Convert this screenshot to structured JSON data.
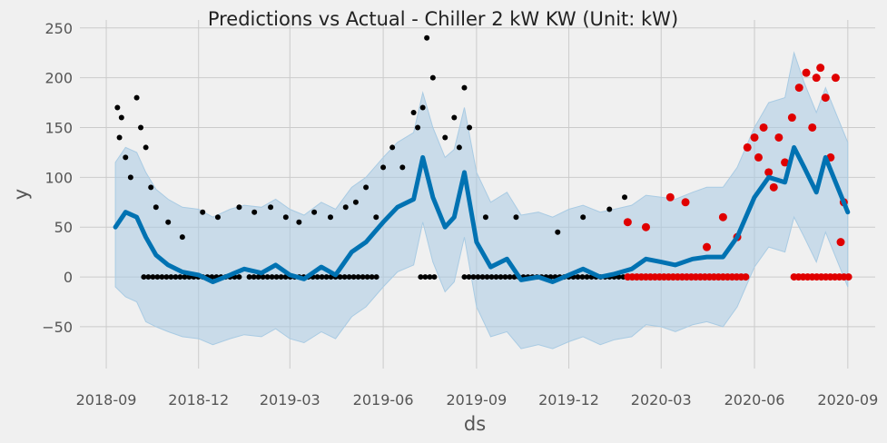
{
  "chart_data": {
    "type": "scatter",
    "title": "Predictions vs Actual - Chiller 2 kW KW (Unit: kW)",
    "xlabel": "ds",
    "ylabel": "y",
    "x_range": [
      "2018-08-06",
      "2020-09-28"
    ],
    "ylim": [
      -92,
      258
    ],
    "x_ticks": [
      "2018-09",
      "2018-12",
      "2019-03",
      "2019-06",
      "2019-09",
      "2019-12",
      "2020-03",
      "2020-06",
      "2020-09"
    ],
    "x_tick_dates": [
      "2018-09-01",
      "2018-12-01",
      "2019-03-01",
      "2019-06-01",
      "2019-09-01",
      "2019-12-01",
      "2020-03-01",
      "2020-06-01",
      "2020-09-01"
    ],
    "y_ticks": [
      -50,
      0,
      50,
      100,
      150,
      200,
      250
    ],
    "grid": true,
    "colors": {
      "background": "#f0f0f0",
      "grid": "#cbcbcb",
      "actual_train": "#000000",
      "actual_test": "#e00000",
      "forecast": "#0072b2",
      "band": "#a9cbe3"
    },
    "series": [
      {
        "kind": "forecast",
        "x": [
          "2018-09-10",
          "2018-09-20",
          "2018-10-01",
          "2018-10-10",
          "2018-10-20",
          "2018-11-01",
          "2018-11-15",
          "2018-12-01",
          "2018-12-15",
          "2019-01-01",
          "2019-01-15",
          "2019-02-01",
          "2019-02-15",
          "2019-03-01",
          "2019-03-15",
          "2019-04-01",
          "2019-04-15",
          "2019-05-01",
          "2019-05-15",
          "2019-06-01",
          "2019-06-15",
          "2019-07-01",
          "2019-07-10",
          "2019-07-20",
          "2019-08-01",
          "2019-08-10",
          "2019-08-20",
          "2019-09-01",
          "2019-09-15",
          "2019-10-01",
          "2019-10-15",
          "2019-11-01",
          "2019-11-15",
          "2019-12-01",
          "2019-12-15",
          "2020-01-01",
          "2020-01-15",
          "2020-02-01",
          "2020-02-15",
          "2020-03-01",
          "2020-03-15",
          "2020-04-01",
          "2020-04-15",
          "2020-05-01",
          "2020-05-15",
          "2020-06-01",
          "2020-06-15",
          "2020-07-01",
          "2020-07-10",
          "2020-07-20",
          "2020-08-01",
          "2020-08-10",
          "2020-08-20",
          "2020-09-01"
        ],
        "y": [
          50,
          65,
          60,
          40,
          22,
          12,
          5,
          2,
          -5,
          2,
          8,
          4,
          12,
          2,
          -2,
          10,
          2,
          25,
          35,
          55,
          70,
          78,
          120,
          80,
          50,
          60,
          105,
          35,
          10,
          18,
          -3,
          0,
          -5,
          2,
          8,
          0,
          3,
          8,
          18,
          15,
          12,
          18,
          20,
          20,
          40,
          80,
          100,
          95,
          130,
          110,
          85,
          120,
          95,
          65
        ]
      },
      {
        "kind": "uncertainty_band",
        "x": [
          "2018-09-10",
          "2018-09-20",
          "2018-10-01",
          "2018-10-10",
          "2018-10-20",
          "2018-11-01",
          "2018-11-15",
          "2018-12-01",
          "2018-12-15",
          "2019-01-01",
          "2019-01-15",
          "2019-02-01",
          "2019-02-15",
          "2019-03-01",
          "2019-03-15",
          "2019-04-01",
          "2019-04-15",
          "2019-05-01",
          "2019-05-15",
          "2019-06-01",
          "2019-06-15",
          "2019-07-01",
          "2019-07-10",
          "2019-07-20",
          "2019-08-01",
          "2019-08-10",
          "2019-08-20",
          "2019-09-01",
          "2019-09-15",
          "2019-10-01",
          "2019-10-15",
          "2019-11-01",
          "2019-11-15",
          "2019-12-01",
          "2019-12-15",
          "2020-01-01",
          "2020-01-15",
          "2020-02-01",
          "2020-02-15",
          "2020-03-01",
          "2020-03-15",
          "2020-04-01",
          "2020-04-15",
          "2020-05-01",
          "2020-05-15",
          "2020-06-01",
          "2020-06-15",
          "2020-07-01",
          "2020-07-10",
          "2020-07-20",
          "2020-08-01",
          "2020-08-10",
          "2020-08-20",
          "2020-09-01"
        ],
        "upper": [
          115,
          130,
          125,
          105,
          88,
          78,
          70,
          68,
          60,
          68,
          72,
          70,
          78,
          68,
          62,
          75,
          68,
          90,
          100,
          120,
          135,
          145,
          185,
          150,
          120,
          128,
          170,
          105,
          75,
          85,
          62,
          65,
          60,
          68,
          72,
          65,
          68,
          72,
          82,
          80,
          78,
          85,
          90,
          90,
          110,
          150,
          175,
          180,
          225,
          195,
          165,
          190,
          165,
          135
        ],
        "lower": [
          -10,
          -20,
          -25,
          -45,
          -50,
          -55,
          -60,
          -62,
          -68,
          -62,
          -58,
          -60,
          -52,
          -62,
          -66,
          -55,
          -62,
          -40,
          -30,
          -10,
          5,
          12,
          55,
          15,
          -15,
          -5,
          40,
          -30,
          -60,
          -55,
          -72,
          -68,
          -72,
          -65,
          -60,
          -68,
          -63,
          -60,
          -48,
          -50,
          -55,
          -48,
          -45,
          -50,
          -30,
          10,
          30,
          25,
          60,
          40,
          15,
          45,
          20,
          -10
        ]
      },
      {
        "kind": "actual_train",
        "name": "",
        "x": [
          "2018-09-12",
          "2018-09-14",
          "2018-09-16",
          "2018-09-20",
          "2018-09-25",
          "2018-10-01",
          "2018-10-05",
          "2018-10-10",
          "2018-10-15",
          "2018-10-20",
          "2018-11-01",
          "2018-11-15",
          "2018-12-05",
          "2018-12-20",
          "2019-01-10",
          "2019-01-25",
          "2019-02-10",
          "2019-02-25",
          "2019-03-10",
          "2019-03-25",
          "2019-04-10",
          "2019-04-25",
          "2019-05-05",
          "2019-05-15",
          "2019-05-25",
          "2019-06-01",
          "2019-06-10",
          "2019-06-20",
          "2019-07-01",
          "2019-07-05",
          "2019-07-10",
          "2019-07-14",
          "2019-07-20",
          "2019-08-01",
          "2019-08-10",
          "2019-08-15",
          "2019-08-20",
          "2019-08-25",
          "2019-09-10",
          "2019-10-10",
          "2019-11-20",
          "2019-12-15",
          "2020-01-10",
          "2020-01-25"
        ],
        "y": [
          170,
          140,
          160,
          120,
          100,
          180,
          150,
          130,
          90,
          70,
          55,
          40,
          65,
          60,
          70,
          65,
          70,
          60,
          55,
          65,
          60,
          70,
          75,
          90,
          60,
          110,
          130,
          110,
          165,
          150,
          170,
          240,
          200,
          140,
          160,
          130,
          190,
          150,
          60,
          60,
          45,
          60,
          68,
          80
        ]
      },
      {
        "kind": "actual_test",
        "name": "",
        "x": [
          "2020-01-28",
          "2020-02-15",
          "2020-03-10",
          "2020-03-25",
          "2020-04-15",
          "2020-05-01",
          "2020-05-15",
          "2020-05-25",
          "2020-06-01",
          "2020-06-05",
          "2020-06-10",
          "2020-06-15",
          "2020-06-20",
          "2020-06-25",
          "2020-07-01",
          "2020-07-08",
          "2020-07-15",
          "2020-07-22",
          "2020-07-28",
          "2020-08-01",
          "2020-08-05",
          "2020-08-10",
          "2020-08-15",
          "2020-08-20",
          "2020-08-25",
          "2020-08-28"
        ],
        "y": [
          55,
          50,
          80,
          75,
          30,
          60,
          40,
          130,
          140,
          120,
          150,
          105,
          90,
          140,
          115,
          160,
          190,
          205,
          150,
          200,
          210,
          180,
          120,
          200,
          35,
          75
        ]
      }
    ]
  }
}
